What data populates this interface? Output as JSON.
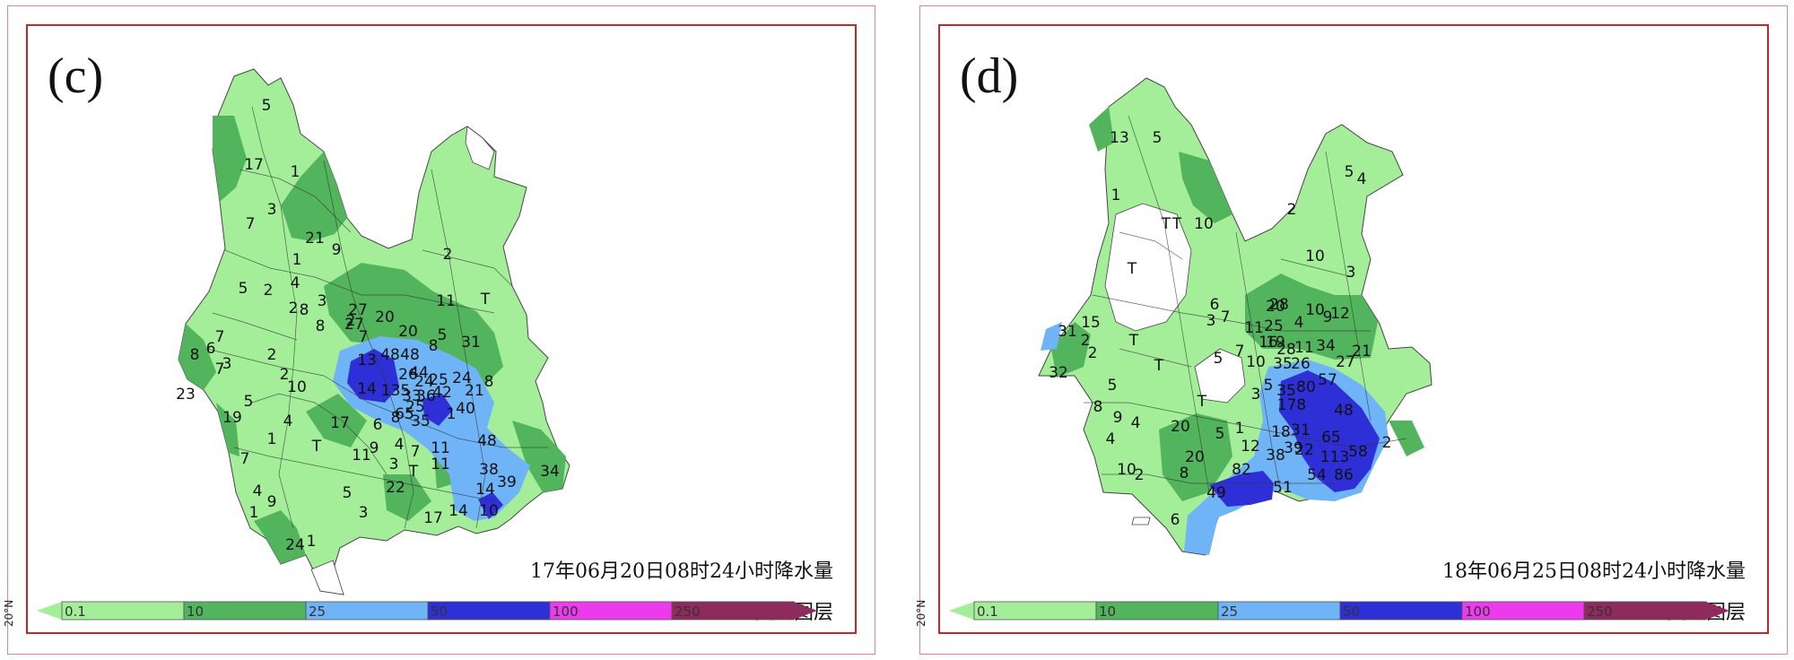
{
  "legend": {
    "thresholds": [
      "0.1",
      "10",
      "25",
      "50",
      "100",
      "250"
    ],
    "colors": [
      "#a4ee9a",
      "#52b45c",
      "#6fb4f6",
      "#2f2fd8",
      "#ee3aee",
      "#8e2a5c"
    ]
  },
  "panels": [
    {
      "label": "(c)",
      "caption": "17年06月20日08时24小时降水量",
      "layer": "交互图层",
      "lat": "20°N",
      "values": [
        {
          "t": "5",
          "x": 266,
          "y": 94
        },
        {
          "t": "17",
          "x": 252,
          "y": 160
        },
        {
          "t": "1",
          "x": 298,
          "y": 168
        },
        {
          "t": "3",
          "x": 272,
          "y": 210
        },
        {
          "t": "7",
          "x": 248,
          "y": 226
        },
        {
          "t": "21",
          "x": 320,
          "y": 242
        },
        {
          "t": "9",
          "x": 344,
          "y": 255
        },
        {
          "t": "1",
          "x": 300,
          "y": 266
        },
        {
          "t": "5",
          "x": 240,
          "y": 298
        },
        {
          "t": "2",
          "x": 268,
          "y": 300
        },
        {
          "t": "4",
          "x": 298,
          "y": 292
        },
        {
          "t": "2",
          "x": 296,
          "y": 320
        },
        {
          "t": "8",
          "x": 308,
          "y": 322
        },
        {
          "t": "3",
          "x": 328,
          "y": 312
        },
        {
          "t": "27",
          "x": 368,
          "y": 322
        },
        {
          "t": "27",
          "x": 364,
          "y": 338
        },
        {
          "t": "7",
          "x": 374,
          "y": 352
        },
        {
          "t": "20",
          "x": 398,
          "y": 330
        },
        {
          "t": "8",
          "x": 326,
          "y": 340
        },
        {
          "t": "2",
          "x": 360,
          "y": 334
        },
        {
          "t": "20",
          "x": 424,
          "y": 346
        },
        {
          "t": "8",
          "x": 452,
          "y": 362
        },
        {
          "t": "2",
          "x": 468,
          "y": 260
        },
        {
          "t": "11",
          "x": 466,
          "y": 312
        },
        {
          "t": "T",
          "x": 510,
          "y": 310
        },
        {
          "t": "31",
          "x": 494,
          "y": 358
        },
        {
          "t": "5",
          "x": 462,
          "y": 350
        },
        {
          "t": "7",
          "x": 214,
          "y": 352
        },
        {
          "t": "6",
          "x": 204,
          "y": 365
        },
        {
          "t": "8",
          "x": 186,
          "y": 372
        },
        {
          "t": "7",
          "x": 214,
          "y": 388
        },
        {
          "t": "3",
          "x": 222,
          "y": 382
        },
        {
          "t": "2",
          "x": 272,
          "y": 372
        },
        {
          "t": "2",
          "x": 286,
          "y": 394
        },
        {
          "t": "10",
          "x": 300,
          "y": 408
        },
        {
          "t": "5",
          "x": 246,
          "y": 424
        },
        {
          "t": "19",
          "x": 228,
          "y": 442
        },
        {
          "t": "4",
          "x": 290,
          "y": 446
        },
        {
          "t": "1",
          "x": 272,
          "y": 466
        },
        {
          "t": "17",
          "x": 348,
          "y": 448
        },
        {
          "t": "T",
          "x": 322,
          "y": 474
        },
        {
          "t": "7",
          "x": 242,
          "y": 488
        },
        {
          "t": "4",
          "x": 256,
          "y": 524
        },
        {
          "t": "9",
          "x": 272,
          "y": 536
        },
        {
          "t": "1",
          "x": 252,
          "y": 548
        },
        {
          "t": "24",
          "x": 298,
          "y": 584
        },
        {
          "t": "1",
          "x": 316,
          "y": 580
        },
        {
          "t": "3",
          "x": 374,
          "y": 548
        },
        {
          "t": "5",
          "x": 356,
          "y": 526
        },
        {
          "t": "22",
          "x": 410,
          "y": 520
        },
        {
          "t": "11",
          "x": 372,
          "y": 484
        },
        {
          "t": "9",
          "x": 386,
          "y": 476
        },
        {
          "t": "3",
          "x": 408,
          "y": 494
        },
        {
          "t": "4",
          "x": 414,
          "y": 472
        },
        {
          "t": "T",
          "x": 430,
          "y": 502
        },
        {
          "t": "11",
          "x": 460,
          "y": 494
        },
        {
          "t": "17",
          "x": 452,
          "y": 554
        },
        {
          "t": "6",
          "x": 390,
          "y": 450
        },
        {
          "t": "8",
          "x": 410,
          "y": 442
        },
        {
          "t": "7",
          "x": 432,
          "y": 480
        },
        {
          "t": "11",
          "x": 460,
          "y": 476
        },
        {
          "t": "13",
          "x": 378,
          "y": 378
        },
        {
          "t": "48",
          "x": 404,
          "y": 372
        },
        {
          "t": "14",
          "x": 378,
          "y": 410
        },
        {
          "t": "135",
          "x": 410,
          "y": 412
        },
        {
          "t": "48",
          "x": 426,
          "y": 372
        },
        {
          "t": "26",
          "x": 424,
          "y": 394
        },
        {
          "t": "44",
          "x": 436,
          "y": 392
        },
        {
          "t": "33",
          "x": 428,
          "y": 418
        },
        {
          "t": "36",
          "x": 444,
          "y": 418
        },
        {
          "t": "24",
          "x": 442,
          "y": 402
        },
        {
          "t": "25",
          "x": 458,
          "y": 400
        },
        {
          "t": "42",
          "x": 462,
          "y": 414
        },
        {
          "t": "24",
          "x": 484,
          "y": 398
        },
        {
          "t": "21",
          "x": 498,
          "y": 412
        },
        {
          "t": "8",
          "x": 514,
          "y": 402
        },
        {
          "t": "40",
          "x": 488,
          "y": 432
        },
        {
          "t": "1",
          "x": 472,
          "y": 438
        },
        {
          "t": "65",
          "x": 420,
          "y": 438
        },
        {
          "t": "35",
          "x": 438,
          "y": 446
        },
        {
          "t": "25",
          "x": 432,
          "y": 430
        },
        {
          "t": "48",
          "x": 512,
          "y": 468
        },
        {
          "t": "38",
          "x": 514,
          "y": 500
        },
        {
          "t": "39",
          "x": 534,
          "y": 514
        },
        {
          "t": "14",
          "x": 510,
          "y": 522
        },
        {
          "t": "14",
          "x": 480,
          "y": 546
        },
        {
          "t": "10",
          "x": 514,
          "y": 546
        },
        {
          "t": "34",
          "x": 582,
          "y": 502
        },
        {
          "t": "23",
          "x": 176,
          "y": 416
        }
      ]
    },
    {
      "label": "(d)",
      "caption": "18年06月25日08时24小时降水量",
      "layer": "交互图层",
      "lat": "20°N",
      "values": [
        {
          "t": "13",
          "x": 200,
          "y": 130
        },
        {
          "t": "5",
          "x": 242,
          "y": 130
        },
        {
          "t": "1",
          "x": 196,
          "y": 194
        },
        {
          "t": "T",
          "x": 252,
          "y": 226
        },
        {
          "t": "T",
          "x": 264,
          "y": 226
        },
        {
          "t": "10",
          "x": 294,
          "y": 226
        },
        {
          "t": "T",
          "x": 214,
          "y": 276
        },
        {
          "t": "5",
          "x": 456,
          "y": 168
        },
        {
          "t": "4",
          "x": 470,
          "y": 176
        },
        {
          "t": "2",
          "x": 392,
          "y": 210
        },
        {
          "t": "10",
          "x": 418,
          "y": 262
        },
        {
          "t": "3",
          "x": 458,
          "y": 280
        },
        {
          "t": "6",
          "x": 306,
          "y": 316
        },
        {
          "t": "3",
          "x": 302,
          "y": 334
        },
        {
          "t": "7",
          "x": 318,
          "y": 330
        },
        {
          "t": "11",
          "x": 350,
          "y": 342
        },
        {
          "t": "25",
          "x": 372,
          "y": 340
        },
        {
          "t": "28",
          "x": 378,
          "y": 316
        },
        {
          "t": "20",
          "x": 374,
          "y": 318
        },
        {
          "t": "4",
          "x": 400,
          "y": 336
        },
        {
          "t": "10",
          "x": 418,
          "y": 322
        },
        {
          "t": "9",
          "x": 432,
          "y": 330
        },
        {
          "t": "12",
          "x": 446,
          "y": 326
        },
        {
          "t": "15",
          "x": 168,
          "y": 336
        },
        {
          "t": "31",
          "x": 142,
          "y": 346
        },
        {
          "t": "2",
          "x": 162,
          "y": 356
        },
        {
          "t": "2",
          "x": 170,
          "y": 370
        },
        {
          "t": "T",
          "x": 216,
          "y": 356
        },
        {
          "t": "5",
          "x": 192,
          "y": 406
        },
        {
          "t": "8",
          "x": 176,
          "y": 430
        },
        {
          "t": "9",
          "x": 198,
          "y": 442
        },
        {
          "t": "4",
          "x": 218,
          "y": 448
        },
        {
          "t": "4",
          "x": 190,
          "y": 466
        },
        {
          "t": "10",
          "x": 208,
          "y": 500
        },
        {
          "t": "2",
          "x": 222,
          "y": 506
        },
        {
          "t": "20",
          "x": 268,
          "y": 452
        },
        {
          "t": "20",
          "x": 284,
          "y": 486
        },
        {
          "t": "8",
          "x": 272,
          "y": 504
        },
        {
          "t": "6",
          "x": 262,
          "y": 556
        },
        {
          "t": "5",
          "x": 312,
          "y": 460
        },
        {
          "t": "1",
          "x": 334,
          "y": 454
        },
        {
          "t": "T",
          "x": 244,
          "y": 384
        },
        {
          "t": "T",
          "x": 292,
          "y": 424
        },
        {
          "t": "5",
          "x": 310,
          "y": 376
        },
        {
          "t": "7",
          "x": 334,
          "y": 368
        },
        {
          "t": "10",
          "x": 352,
          "y": 380
        },
        {
          "t": "16",
          "x": 366,
          "y": 358
        },
        {
          "t": "19",
          "x": 374,
          "y": 358
        },
        {
          "t": "28",
          "x": 386,
          "y": 366
        },
        {
          "t": "11",
          "x": 406,
          "y": 364
        },
        {
          "t": "35",
          "x": 382,
          "y": 382
        },
        {
          "t": "26",
          "x": 402,
          "y": 382
        },
        {
          "t": "34",
          "x": 430,
          "y": 362
        },
        {
          "t": "21",
          "x": 470,
          "y": 368
        },
        {
          "t": "27",
          "x": 452,
          "y": 380
        },
        {
          "t": "57",
          "x": 432,
          "y": 400
        },
        {
          "t": "80",
          "x": 408,
          "y": 408
        },
        {
          "t": "5",
          "x": 366,
          "y": 406
        },
        {
          "t": "35",
          "x": 386,
          "y": 412
        },
        {
          "t": "178",
          "x": 392,
          "y": 428
        },
        {
          "t": "3",
          "x": 352,
          "y": 416
        },
        {
          "t": "48",
          "x": 450,
          "y": 434
        },
        {
          "t": "2",
          "x": 498,
          "y": 470
        },
        {
          "t": "12",
          "x": 346,
          "y": 474
        },
        {
          "t": "18",
          "x": 380,
          "y": 458
        },
        {
          "t": "31",
          "x": 402,
          "y": 456
        },
        {
          "t": "65",
          "x": 436,
          "y": 464
        },
        {
          "t": "38",
          "x": 374,
          "y": 484
        },
        {
          "t": "39",
          "x": 394,
          "y": 476
        },
        {
          "t": "22",
          "x": 406,
          "y": 478
        },
        {
          "t": "113",
          "x": 440,
          "y": 486
        },
        {
          "t": "58",
          "x": 466,
          "y": 480
        },
        {
          "t": "82",
          "x": 336,
          "y": 500
        },
        {
          "t": "51",
          "x": 382,
          "y": 520
        },
        {
          "t": "54",
          "x": 420,
          "y": 506
        },
        {
          "t": "86",
          "x": 450,
          "y": 506
        },
        {
          "t": "49",
          "x": 308,
          "y": 526
        },
        {
          "t": "32",
          "x": 132,
          "y": 392
        }
      ]
    }
  ]
}
